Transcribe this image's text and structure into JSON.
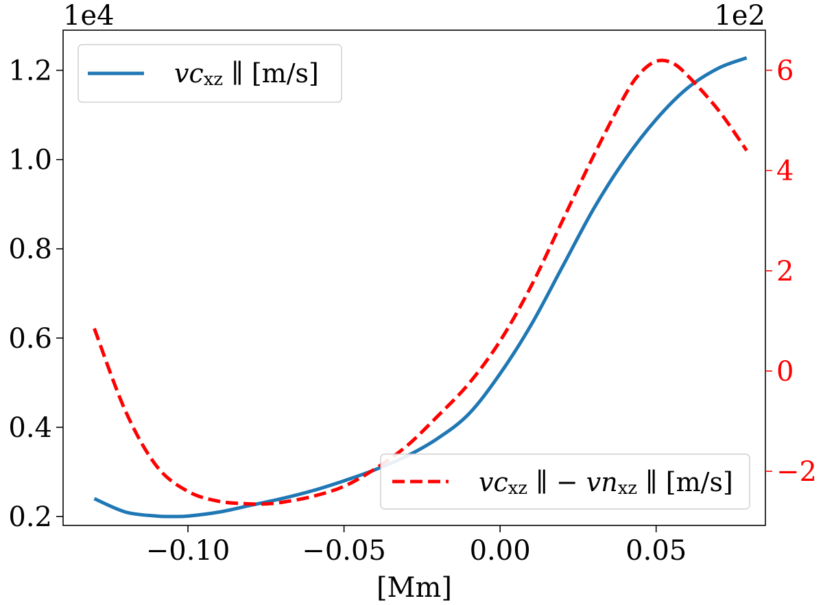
{
  "chart_data": {
    "type": "line",
    "xlabel": "[Mm]",
    "xlim": [
      -0.14,
      0.085
    ],
    "x_ticks": [
      {
        "value": -0.1,
        "label": "−0.10"
      },
      {
        "value": -0.05,
        "label": "−0.05"
      },
      {
        "value": 0.0,
        "label": "0.00"
      },
      {
        "value": 0.05,
        "label": "0.05"
      }
    ],
    "left_axis": {
      "multiplier": "1e4",
      "ylim": [
        0.18,
        1.29
      ],
      "ticks": [
        {
          "value": 0.2,
          "label": "0.2"
        },
        {
          "value": 0.4,
          "label": "0.4"
        },
        {
          "value": 0.6,
          "label": "0.6"
        },
        {
          "value": 0.8,
          "label": "0.8"
        },
        {
          "value": 1.0,
          "label": "1.0"
        },
        {
          "value": 1.2,
          "label": "1.2"
        }
      ]
    },
    "right_axis": {
      "multiplier": "1e2",
      "color": "#ff0000",
      "ylim": [
        -3.08,
        6.8
      ],
      "ticks": [
        {
          "value": -2,
          "label": "−2"
        },
        {
          "value": 0,
          "label": "0"
        },
        {
          "value": 2,
          "label": "2"
        },
        {
          "value": 4,
          "label": "4"
        },
        {
          "value": 6,
          "label": "6"
        }
      ]
    },
    "series": [
      {
        "name": "vc_xz ∥ [m/s]",
        "axis": "left",
        "color": "#1f77b4",
        "style": "solid",
        "legend": {
          "main": "vc",
          "sub": "xz",
          "rest": " ∥ [m/s]"
        },
        "x": [
          -0.13,
          -0.12,
          -0.11,
          -0.105,
          -0.1,
          -0.09,
          -0.08,
          -0.07,
          -0.06,
          -0.05,
          -0.04,
          -0.03,
          -0.02,
          -0.01,
          0.0,
          0.01,
          0.02,
          0.03,
          0.04,
          0.05,
          0.06,
          0.07,
          0.079
        ],
        "values": [
          0.24,
          0.21,
          0.201,
          0.2,
          0.201,
          0.21,
          0.225,
          0.24,
          0.258,
          0.28,
          0.305,
          0.335,
          0.375,
          0.43,
          0.52,
          0.63,
          0.76,
          0.89,
          1.0,
          1.09,
          1.16,
          1.205,
          1.228
        ]
      },
      {
        "name": "vc_xz ∥ − vn_xz ∥ [m/s]",
        "axis": "right",
        "color": "#ff0000",
        "style": "dashed",
        "legend": {
          "main": "vc",
          "sub": "xz",
          "mid": " ∥ − vn",
          "sub2": "xz",
          "rest": " ∥ [m/s]"
        },
        "x": [
          -0.13,
          -0.12,
          -0.11,
          -0.1,
          -0.09,
          -0.08,
          -0.075,
          -0.07,
          -0.06,
          -0.05,
          -0.04,
          -0.03,
          -0.02,
          -0.01,
          0.0,
          0.01,
          0.02,
          0.03,
          0.04,
          0.045,
          0.05,
          0.055,
          0.06,
          0.07,
          0.079
        ],
        "values": [
          0.85,
          -0.8,
          -1.9,
          -2.4,
          -2.6,
          -2.65,
          -2.65,
          -2.62,
          -2.5,
          -2.3,
          -1.95,
          -1.5,
          -0.9,
          -0.25,
          0.6,
          1.7,
          3.0,
          4.3,
          5.5,
          5.95,
          6.18,
          6.15,
          5.9,
          5.2,
          4.4
        ]
      }
    ]
  }
}
